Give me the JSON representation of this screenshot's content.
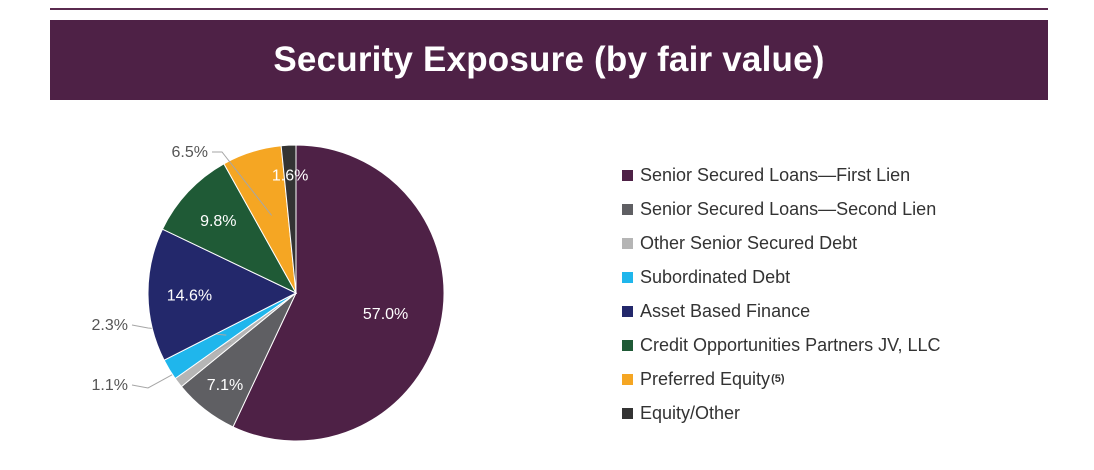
{
  "header": {
    "title": "Security Exposure (by fair value)"
  },
  "chart_data": {
    "type": "pie",
    "title": "Security Exposure (by fair value)",
    "start": "top",
    "direction": "clockwise",
    "slices": [
      {
        "name": "Senior Secured Loans—First Lien",
        "value": 57.0,
        "label": "57.0%",
        "color": "#4e2146"
      },
      {
        "name": "Senior Secured Loans—Second Lien",
        "value": 7.1,
        "label": "7.1%",
        "color": "#5f5f63"
      },
      {
        "name": "Other Senior Secured Debt",
        "value": 1.1,
        "label": "1.1%",
        "color": "#b5b5b5"
      },
      {
        "name": "Subordinated Debt",
        "value": 2.3,
        "label": "2.3%",
        "color": "#1fb6ec"
      },
      {
        "name": "Asset Based Finance",
        "value": 14.6,
        "label": "14.6%",
        "color": "#23286b"
      },
      {
        "name": "Credit Opportunities Partners JV, LLC",
        "value": 9.8,
        "label": "9.8%",
        "color": "#1f5a36"
      },
      {
        "name": "Preferred Equity",
        "superscript": "(5)",
        "value": 6.5,
        "label": "6.5%",
        "color": "#f5a623"
      },
      {
        "name": "Equity/Other",
        "value": 1.6,
        "label": "1.6%",
        "color": "#333333"
      }
    ],
    "legend_position": "right"
  }
}
